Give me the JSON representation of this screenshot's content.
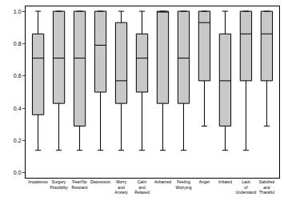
{
  "chart_data": {
    "type": "box",
    "categories": [
      "Impatience",
      "Surgery Possibility",
      "Fear/No Restraint",
      "Depression",
      "Worry and Anxiety",
      "Calm and Relaxed",
      "Ashamed",
      "Feeling Worrying",
      "Anger",
      "Irritated",
      "Lack of Understand",
      "Satisfied and Thankful"
    ],
    "min": [
      0.14,
      0.14,
      0.14,
      0.14,
      0.14,
      0.14,
      0.14,
      0.14,
      0.29,
      0.14,
      0.14,
      0.29
    ],
    "q1": [
      0.36,
      0.43,
      0.29,
      0.5,
      0.43,
      0.5,
      0.43,
      0.43,
      0.57,
      0.29,
      0.57,
      0.57
    ],
    "median": [
      0.71,
      0.71,
      0.71,
      0.79,
      0.57,
      0.71,
      1.0,
      0.71,
      0.93,
      0.57,
      0.86,
      0.86
    ],
    "q3": [
      0.86,
      1.0,
      1.0,
      1.0,
      0.93,
      0.86,
      1.0,
      1.0,
      1.0,
      0.86,
      1.0,
      1.0
    ],
    "max": [
      1.0,
      1.0,
      1.0,
      1.0,
      1.0,
      1.0,
      1.0,
      1.0,
      1.0,
      1.0,
      1.0,
      1.0
    ],
    "color": "#c8c8c8",
    "ylim": [
      -0.03,
      1.03
    ],
    "yticks": [
      {
        "value": 0,
        "label": "0.0"
      },
      {
        "value": 0.2,
        "label": "0.2"
      },
      {
        "value": 0.4,
        "label": "0.4"
      },
      {
        "value": 0.6,
        "label": "0.6"
      },
      {
        "value": 0.8,
        "label": "0.8"
      },
      {
        "value": 1,
        "label": "1.0"
      }
    ],
    "grid": false
  }
}
